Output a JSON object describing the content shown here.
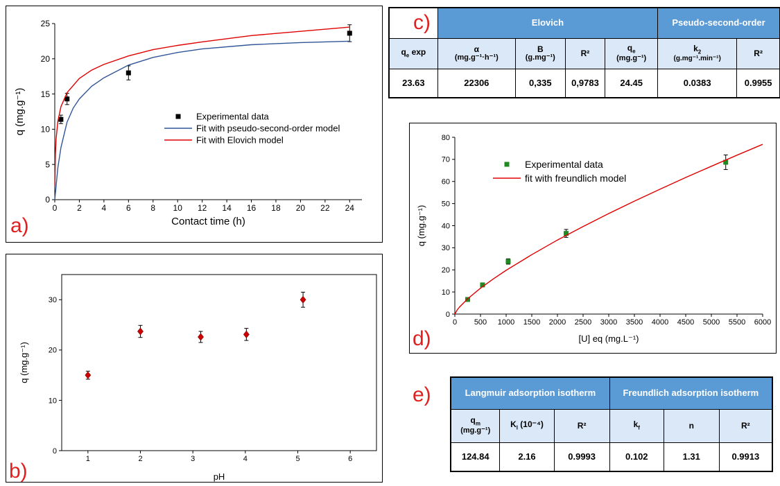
{
  "panel_letters": {
    "a": "a)",
    "b": "b)",
    "c": "c)",
    "d": "d)",
    "e": "e)"
  },
  "chart_data": [
    {
      "id": "a",
      "type": "scatter",
      "xlabel": "Contact time (h)",
      "ylabel": "q (mg.g⁻¹)",
      "xlim": [
        0,
        25
      ],
      "ylim": [
        0,
        25
      ],
      "xticks": [
        "0",
        "2",
        "4",
        "6",
        "8",
        "10",
        "12",
        "14",
        "16",
        "18",
        "20",
        "22",
        "24"
      ],
      "yticks": [
        "0",
        "5",
        "10",
        "15",
        "20",
        "25"
      ],
      "legend": [
        "Experimental data",
        "Fit with pseudo-second-order model",
        "Fit with Elovich model"
      ],
      "legend_position": "center-right",
      "series": [
        {
          "name": "Experimental data",
          "kind": "points",
          "marker": "square",
          "color": "#000000",
          "x": [
            0.5,
            1,
            6,
            24
          ],
          "y": [
            11.4,
            14.3,
            18.0,
            23.63
          ],
          "err": [
            0.6,
            0.8,
            1.0,
            1.2
          ]
        },
        {
          "name": "Fit with pseudo-second-order model",
          "kind": "line",
          "color": "#2f5597",
          "x": [
            0,
            0.25,
            0.5,
            1,
            1.5,
            2,
            3,
            4,
            6,
            8,
            10,
            12,
            16,
            20,
            24
          ],
          "y": [
            0,
            4.5,
            7.4,
            11.0,
            13.0,
            14.3,
            16.1,
            17.3,
            19.1,
            20.2,
            20.9,
            21.4,
            22.0,
            22.3,
            22.5
          ]
        },
        {
          "name": "Fit with Elovich model",
          "kind": "line",
          "color": "#e00000",
          "x": [
            0.01,
            0.05,
            0.1,
            0.25,
            0.5,
            1,
            2,
            3,
            4,
            6,
            8,
            10,
            12,
            16,
            20,
            24
          ],
          "y": [
            2.0,
            6.4,
            8.5,
            11.1,
            13.2,
            15.2,
            17.2,
            18.4,
            19.2,
            20.4,
            21.3,
            21.9,
            22.4,
            23.3,
            23.9,
            24.5
          ]
        }
      ]
    },
    {
      "id": "b",
      "type": "scatter",
      "xlabel": "pH",
      "ylabel": "q (mg.g⁻¹)",
      "xlim": [
        0.5,
        6.5
      ],
      "ylim": [
        0,
        35
      ],
      "xticks": [
        "1",
        "2",
        "3",
        "4",
        "5",
        "6"
      ],
      "yticks": [
        "0",
        "10",
        "20",
        "30"
      ],
      "series": [
        {
          "name": "",
          "kind": "points",
          "marker": "diamond",
          "color": "#d00000",
          "x": [
            1,
            2,
            3.15,
            4.02,
            5.1
          ],
          "y": [
            15.0,
            23.7,
            22.6,
            23.1,
            30.0
          ],
          "err": [
            0.8,
            1.2,
            1.1,
            1.2,
            1.5
          ]
        }
      ]
    },
    {
      "id": "d",
      "type": "scatter",
      "xlabel": "[U] eq (mg.L⁻¹)",
      "ylabel": "q (mg.g⁻¹)",
      "xlim": [
        0,
        6000
      ],
      "ylim": [
        0,
        80
      ],
      "xticks": [
        "0",
        "500",
        "1000",
        "1500",
        "2000",
        "2500",
        "3000",
        "3500",
        "4000",
        "4500",
        "5000",
        "5500",
        "6000"
      ],
      "yticks": [
        "0",
        "10",
        "20",
        "30",
        "40",
        "50",
        "60",
        "70",
        "80"
      ],
      "legend": [
        "Experimental data",
        "fit with freundlich model"
      ],
      "legend_position": "top-left",
      "series": [
        {
          "name": "Experimental data",
          "kind": "points",
          "marker": "square",
          "color": "#1f8a1f",
          "x": [
            250,
            540,
            1040,
            2170,
            5280
          ],
          "y": [
            6.6,
            13.2,
            23.8,
            36.5,
            68.7
          ],
          "err": [
            0.6,
            0.7,
            1.2,
            1.8,
            3.3
          ]
        },
        {
          "name": "fit with freundlich model",
          "kind": "line",
          "color": "#e00000",
          "x": [
            0,
            50,
            100,
            250,
            500,
            750,
            1000,
            1500,
            2000,
            2500,
            3000,
            3500,
            4000,
            4500,
            5000,
            5500,
            6000
          ],
          "y": [
            0,
            2.0,
            3.4,
            6.9,
            11.7,
            15.9,
            19.8,
            26.9,
            33.5,
            39.6,
            45.5,
            51.1,
            56.5,
            61.8,
            66.9,
            71.9,
            76.8
          ]
        }
      ]
    }
  ],
  "table_c": {
    "group_headers": [
      "Elovich",
      "Pseudo-second-order"
    ],
    "qe_exp_label": "q",
    "qe_exp_sub": "e",
    "qe_exp_suffix": " exp",
    "alpha_label": "α",
    "alpha_unit": "(mg.g⁻¹·h⁻¹)",
    "b_label": "B",
    "b_unit": "(g.mg⁻¹)",
    "r2_label": "R²",
    "qe_label": "q",
    "qe_sub": "e",
    "qe_unit": "(mg.g⁻¹)",
    "k2_label": "k",
    "k2_sub": "2",
    "k2_unit": "(g.mg⁻¹.min⁻¹)",
    "values": [
      "23.63",
      "22306",
      "0,335",
      "0,9783",
      "24.45",
      "0.0383",
      "0.9955"
    ]
  },
  "table_e": {
    "group_headers": [
      "Langmuir adsorption isotherm",
      "Freundlich adsorption isotherm"
    ],
    "qm_label": "q",
    "qm_sub": "m",
    "qm_unit": "(mg.g⁻¹)",
    "kl_label": "K",
    "kl_sub": "l",
    "kl_suffix": " (10⁻⁴)",
    "r2_label": "R²",
    "kf_label": "k",
    "kf_sub": "f",
    "n_label": "n",
    "values": [
      "124.84",
      "2.16",
      "0.9993",
      "0.102",
      "1.31",
      "0.9913"
    ]
  }
}
